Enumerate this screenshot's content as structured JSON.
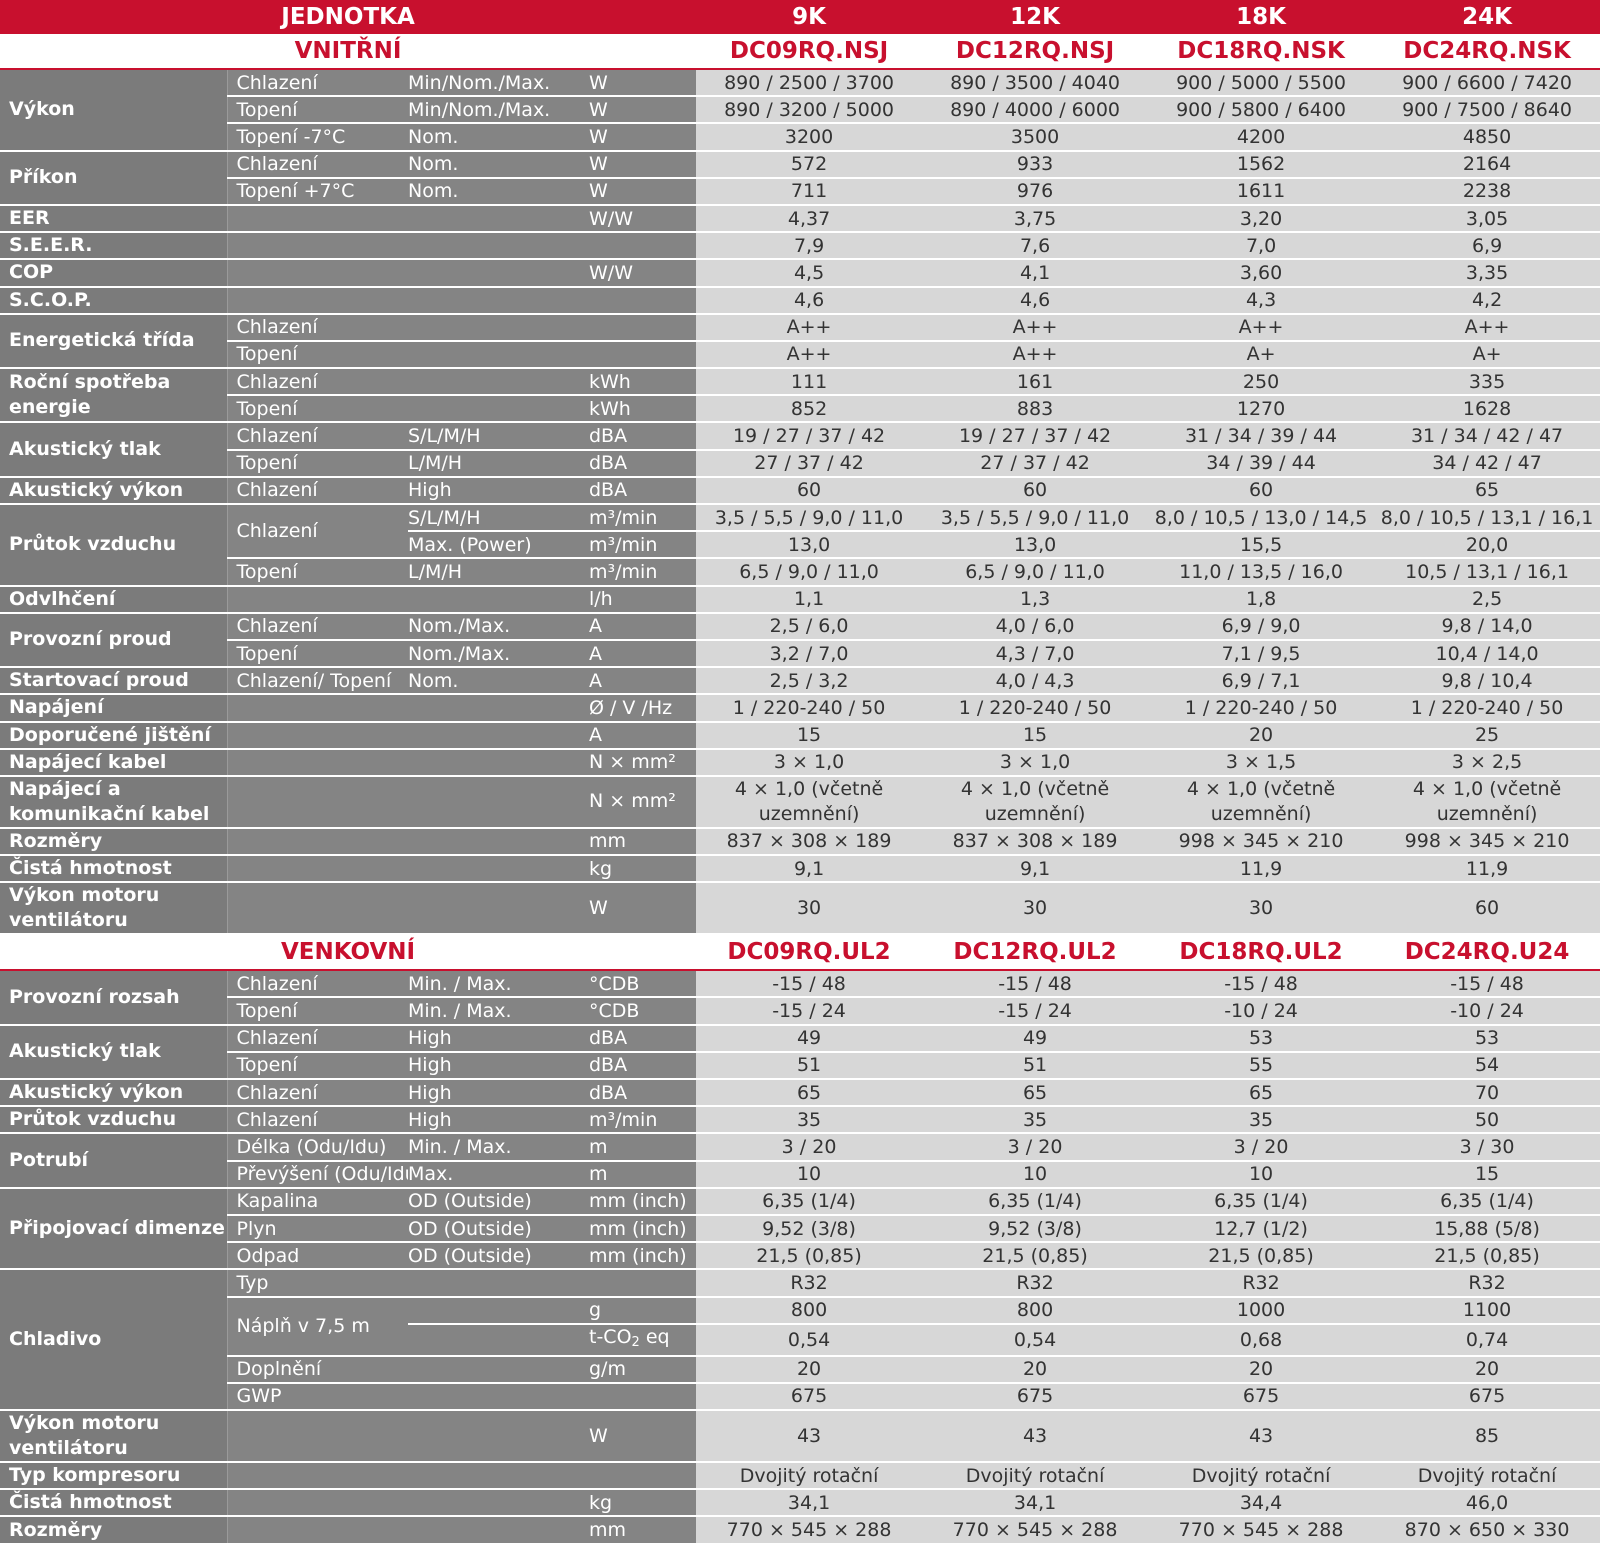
{
  "header": {
    "unit_label": "JEDNOTKA",
    "capacities": [
      "9K",
      "12K",
      "18K",
      "24K"
    ]
  },
  "indoor": {
    "title": "VNITŘNÍ",
    "models": [
      "DC09RQ.NSJ",
      "DC12RQ.NSJ",
      "DC18RQ.NSK",
      "DC24RQ.NSK"
    ],
    "rows": [
      {
        "label": "Výkon",
        "sub": "Chlazení",
        "mode": "Min/Nom./Max.",
        "unit": "W",
        "values": [
          "890 / 2500 / 3700",
          "890 / 3500 / 4040",
          "900 / 5000 / 5500",
          "900 / 6600 / 7420"
        ]
      },
      {
        "sub": "Topení",
        "mode": "Min/Nom./Max.",
        "unit": "W",
        "values": [
          "890 / 3200 / 5000",
          "890 / 4000 / 6000",
          "900 / 5800 / 6400",
          "900 / 7500 / 8640"
        ]
      },
      {
        "sub": "Topení -7°C",
        "mode": "Nom.",
        "unit": "W",
        "values": [
          "3200",
          "3500",
          "4200",
          "4850"
        ]
      },
      {
        "label": "Příkon",
        "sub": "Chlazení",
        "mode": "Nom.",
        "unit": "W",
        "values": [
          "572",
          "933",
          "1562",
          "2164"
        ]
      },
      {
        "sub": "Topení +7°C",
        "mode": "Nom.",
        "unit": "W",
        "values": [
          "711",
          "976",
          "1611",
          "2238"
        ]
      },
      {
        "label": "EER",
        "sub": "",
        "mode": "",
        "unit": "W/W",
        "values": [
          "4,37",
          "3,75",
          "3,20",
          "3,05"
        ]
      },
      {
        "label": "S.E.E.R.",
        "sub": "",
        "mode": "",
        "unit": "",
        "values": [
          "7,9",
          "7,6",
          "7,0",
          "6,9"
        ]
      },
      {
        "label": "COP",
        "sub": "",
        "mode": "",
        "unit": "W/W",
        "values": [
          "4,5",
          "4,1",
          "3,60",
          "3,35"
        ]
      },
      {
        "label": "S.C.O.P.",
        "sub": "",
        "mode": "",
        "unit": "",
        "values": [
          "4,6",
          "4,6",
          "4,3",
          "4,2"
        ]
      },
      {
        "label": "Energetická třída",
        "sub": "Chlazení",
        "mode": "",
        "unit": "",
        "values": [
          "A++",
          "A++",
          "A++",
          "A++"
        ]
      },
      {
        "sub": "Topení",
        "mode": "",
        "unit": "",
        "values": [
          "A++",
          "A++",
          "A+",
          "A+"
        ]
      },
      {
        "label": "Roční spotřeba energie",
        "sub": "Chlazení",
        "mode": "",
        "unit": "kWh",
        "values": [
          "111",
          "161",
          "250",
          "335"
        ]
      },
      {
        "sub": "Topení",
        "mode": "",
        "unit": "kWh",
        "values": [
          "852",
          "883",
          "1270",
          "1628"
        ]
      },
      {
        "label": "Akustický tlak",
        "sub": "Chlazení",
        "mode": "S/L/M/H",
        "unit": "dBA",
        "values": [
          "19 / 27 / 37 / 42",
          "19 / 27 / 37 / 42",
          "31 / 34 / 39 / 44",
          "31 / 34 / 42 / 47"
        ]
      },
      {
        "sub": "Topení",
        "mode": "L/M/H",
        "unit": "dBA",
        "values": [
          "27 / 37 / 42",
          "27 / 37 / 42",
          "34 / 39 / 44",
          "34 / 42 / 47"
        ]
      },
      {
        "label": "Akustický výkon",
        "sub": "Chlazení",
        "mode": "High",
        "unit": "dBA",
        "values": [
          "60",
          "60",
          "60",
          "65"
        ]
      },
      {
        "label": "Průtok vzduchu",
        "sub": "Chlazení",
        "mode": "S/L/M/H",
        "unit": "m³/min",
        "values": [
          "3,5 / 5,5 / 9,0 / 11,0",
          "3,5 / 5,5 / 9,0 / 11,0",
          "8,0 / 10,5 / 13,0 / 14,5",
          "8,0 / 10,5 / 13,1 / 16,1"
        ]
      },
      {
        "mode": "Max. (Power)",
        "unit": "m³/min",
        "values": [
          "13,0",
          "13,0",
          "15,5",
          "20,0"
        ]
      },
      {
        "sub": "Topení",
        "mode": "L/M/H",
        "unit": "m³/min",
        "values": [
          "6,5 / 9,0 / 11,0",
          "6,5 / 9,0 / 11,0",
          "11,0 / 13,5 / 16,0",
          "10,5 / 13,1 / 16,1"
        ]
      },
      {
        "label": "Odvlhčení",
        "sub": "",
        "mode": "",
        "unit": "l/h",
        "values": [
          "1,1",
          "1,3",
          "1,8",
          "2,5"
        ]
      },
      {
        "label": "Provozní proud",
        "sub": "Chlazení",
        "mode": "Nom./Max.",
        "unit": "A",
        "values": [
          "2,5 / 6,0",
          "4,0 / 6,0",
          "6,9 / 9,0",
          "9,8 / 14,0"
        ]
      },
      {
        "sub": "Topení",
        "mode": "Nom./Max.",
        "unit": "A",
        "values": [
          "3,2 / 7,0",
          "4,3 / 7,0",
          "7,1 / 9,5",
          "10,4 / 14,0"
        ]
      },
      {
        "label": "Startovací proud",
        "sub": "Chlazení/ Topení",
        "mode": "Nom.",
        "unit": "A",
        "values": [
          "2,5 / 3,2",
          "4,0 / 4,3",
          "6,9 / 7,1",
          "9,8 / 10,4"
        ]
      },
      {
        "label": "Napájení",
        "sub": "",
        "mode": "",
        "unit": "Ø / V /Hz",
        "values": [
          "1 / 220-240 / 50",
          "1 / 220-240 / 50",
          "1 / 220-240 / 50",
          "1 / 220-240 / 50"
        ]
      },
      {
        "label": "Doporučené jištění",
        "sub": "",
        "mode": "",
        "unit": "A",
        "values": [
          "15",
          "15",
          "20",
          "25"
        ]
      },
      {
        "label": "Napájecí kabel",
        "sub": "",
        "mode": "",
        "unit": "N × mm²",
        "values": [
          "3 × 1,0",
          "3 × 1,0",
          "3 × 1,5",
          "3 × 2,5"
        ]
      },
      {
        "label": "Napájecí a komunikační kabel",
        "sub": "",
        "mode": "",
        "unit": "N × mm²",
        "values": [
          "4 × 1,0 (včetně uzemnění)",
          "4 × 1,0 (včetně uzemnění)",
          "4 × 1,0 (včetně uzemnění)",
          "4 × 1,0 (včetně uzemnění)"
        ]
      },
      {
        "label": "Rozměry",
        "sub": "",
        "mode": "",
        "unit": "mm",
        "values": [
          "837 × 308 × 189",
          "837 × 308 × 189",
          "998 × 345 × 210",
          "998 × 345 × 210"
        ]
      },
      {
        "label": "Čistá hmotnost",
        "sub": "",
        "mode": "",
        "unit": "kg",
        "values": [
          "9,1",
          "9,1",
          "11,9",
          "11,9"
        ]
      },
      {
        "label": "Výkon motoru ventilátoru",
        "sub": "",
        "mode": "",
        "unit": "W",
        "values": [
          "30",
          "30",
          "30",
          "60"
        ]
      }
    ]
  },
  "outdoor": {
    "title": "VENKOVNÍ",
    "models": [
      "DC09RQ.UL2",
      "DC12RQ.UL2",
      "DC18RQ.UL2",
      "DC24RQ.U24"
    ],
    "rows": [
      {
        "label": "Provozní rozsah",
        "sub": "Chlazení",
        "mode": "Min. / Max.",
        "unit": "°CDB",
        "values": [
          "-15 / 48",
          "-15 / 48",
          "-15 / 48",
          "-15 / 48"
        ]
      },
      {
        "sub": "Topení",
        "mode": "Min. / Max.",
        "unit": "°CDB",
        "values": [
          "-15 / 24",
          "-15 / 24",
          "-10 / 24",
          "-10 / 24"
        ]
      },
      {
        "label": "Akustický tlak",
        "sub": "Chlazení",
        "mode": "High",
        "unit": "dBA",
        "values": [
          "49",
          "49",
          "53",
          "53"
        ]
      },
      {
        "sub": "Topení",
        "mode": "High",
        "unit": "dBA",
        "values": [
          "51",
          "51",
          "55",
          "54"
        ]
      },
      {
        "label": "Akustický výkon",
        "sub": "Chlazení",
        "mode": "High",
        "unit": "dBA",
        "values": [
          "65",
          "65",
          "65",
          "70"
        ]
      },
      {
        "label": "Průtok vzduchu",
        "sub": "Chlazení",
        "mode": "High",
        "unit": "m³/min",
        "values": [
          "35",
          "35",
          "35",
          "50"
        ]
      },
      {
        "label": "Potrubí",
        "sub": "Délka (Odu/Idu)",
        "mode": "Min. / Max.",
        "unit": "m",
        "values": [
          "3 / 20",
          "3 / 20",
          "3 / 20",
          "3 / 30"
        ]
      },
      {
        "sub": "Převýšení (Odu/Idu)",
        "mode": "Max.",
        "unit": "m",
        "values": [
          "10",
          "10",
          "10",
          "15"
        ]
      },
      {
        "label": "Připojovací dimenze",
        "sub": "Kapalina",
        "mode": "OD (Outside)",
        "unit": "mm (inch)",
        "values": [
          "6,35 (1/4)",
          "6,35 (1/4)",
          "6,35 (1/4)",
          "6,35 (1/4)"
        ]
      },
      {
        "sub": "Plyn",
        "mode": "OD (Outside)",
        "unit": "mm (inch)",
        "values": [
          "9,52 (3/8)",
          "9,52 (3/8)",
          "12,7 (1/2)",
          "15,88 (5/8)"
        ]
      },
      {
        "sub": "Odpad",
        "mode": "OD (Outside)",
        "unit": "mm (inch)",
        "values": [
          "21,5 (0,85)",
          "21,5 (0,85)",
          "21,5 (0,85)",
          "21,5 (0,85)"
        ]
      },
      {
        "label": "Chladivo",
        "sub": "Typ",
        "mode": "",
        "unit": "",
        "values": [
          "R32",
          "R32",
          "R32",
          "R32"
        ]
      },
      {
        "sub": "Náplň v 7,5 m",
        "mode": "",
        "unit": "g",
        "values": [
          "800",
          "800",
          "1000",
          "1100"
        ]
      },
      {
        "unit_main": "t-CO",
        "unit_sub": "2",
        "unit_tail": " eq",
        "values": [
          "0,54",
          "0,54",
          "0,68",
          "0,74"
        ]
      },
      {
        "sub": "Doplnění",
        "mode": "",
        "unit": "g/m",
        "values": [
          "20",
          "20",
          "20",
          "20"
        ]
      },
      {
        "sub": "GWP",
        "mode": "",
        "unit": "",
        "values": [
          "675",
          "675",
          "675",
          "675"
        ]
      },
      {
        "label": "Výkon motoru ventilátoru",
        "sub": "",
        "mode": "",
        "unit": "W",
        "values": [
          "43",
          "43",
          "43",
          "85"
        ]
      },
      {
        "label": "Typ kompresoru",
        "sub": "",
        "mode": "",
        "unit": "",
        "values": [
          "Dvojitý rotační",
          "Dvojitý rotační",
          "Dvojitý rotační",
          "Dvojitý rotační"
        ]
      },
      {
        "label": "Čistá hmotnost",
        "sub": "",
        "mode": "",
        "unit": "kg",
        "values": [
          "34,1",
          "34,1",
          "34,4",
          "46,0"
        ]
      },
      {
        "label": "Rozměry",
        "sub": "",
        "mode": "",
        "unit": "mm",
        "values": [
          "770 × 545 × 288",
          "770 × 545 × 288",
          "770 × 545 × 288",
          "870 × 650 × 330"
        ]
      }
    ]
  }
}
